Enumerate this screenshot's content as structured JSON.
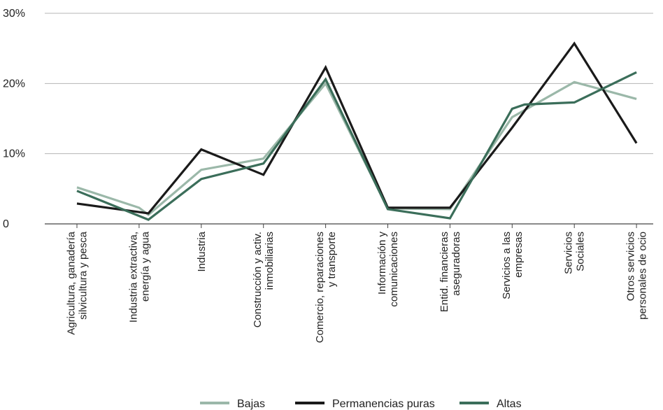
{
  "chart_data": {
    "type": "line",
    "categories": [
      [
        "Agricultura, ganadería",
        "silvicultura y pesca"
      ],
      [
        "Industria extractiva,",
        "energía y agua"
      ],
      [
        "Industria"
      ],
      [
        "Construcción y activ.",
        "inmobiliarias"
      ],
      [
        "Comercio, reparaciones",
        "y transporte"
      ],
      [
        "Información y",
        "comunicaciones"
      ],
      [
        "Entid. financieras",
        "aseguradoras"
      ],
      [
        "Servicios a las",
        "empresas"
      ],
      [
        "Servicios",
        "Sociales"
      ],
      [
        "Otros servicios",
        "personales de ocio"
      ]
    ],
    "ylim": [
      0,
      30
    ],
    "yticks": [
      {
        "value": 0,
        "label": "0"
      },
      {
        "value": 10,
        "label": "10%"
      },
      {
        "value": 20,
        "label": "20%"
      },
      {
        "value": 30,
        "label": "30%"
      }
    ],
    "grid": true,
    "legend_position": "bottom",
    "series": [
      {
        "name": "Bajas",
        "color": "#9bb8a9",
        "points": [
          [
            0,
            5.2
          ],
          [
            1.0,
            2.3
          ],
          [
            1.15,
            1.3
          ],
          [
            2,
            7.7
          ],
          [
            3,
            9.3
          ],
          [
            4,
            20.0
          ],
          [
            5,
            2.2
          ],
          [
            6,
            2.1
          ],
          [
            7,
            15.2
          ],
          [
            8,
            20.2
          ],
          [
            9,
            17.8
          ]
        ]
      },
      {
        "name": "Permanencias puras",
        "color": "#1a1a1a",
        "points": [
          [
            0,
            2.9
          ],
          [
            1.15,
            1.5
          ],
          [
            2,
            10.6
          ],
          [
            3,
            7.0
          ],
          [
            4,
            22.3
          ],
          [
            5,
            2.3
          ],
          [
            6,
            2.3
          ],
          [
            7,
            13.7
          ],
          [
            8,
            25.7
          ],
          [
            9,
            11.5
          ]
        ]
      },
      {
        "name": "Altas",
        "color": "#3b6e5a",
        "points": [
          [
            0,
            4.7
          ],
          [
            1.15,
            0.6
          ],
          [
            2,
            6.4
          ],
          [
            3,
            8.6
          ],
          [
            4,
            20.6
          ],
          [
            5,
            2.1
          ],
          [
            6,
            0.8
          ],
          [
            7,
            16.4
          ],
          [
            7.2,
            17.0
          ],
          [
            8,
            17.3
          ],
          [
            9,
            21.6
          ]
        ]
      }
    ]
  }
}
